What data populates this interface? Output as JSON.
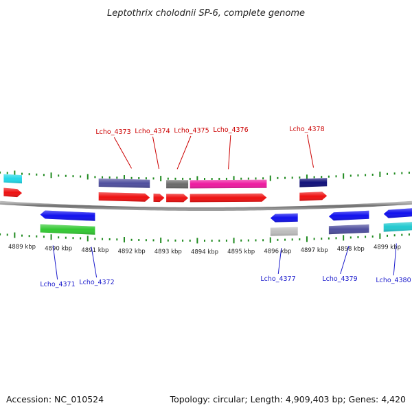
{
  "title": "Leptothrix cholodnii SP-6, complete genome",
  "footer": {
    "accession": "Accession: NC_010524",
    "summary": "Topology: circular; Length: 4,909,403 bp; Genes: 4,420"
  },
  "colors": {
    "backbone": "#8a8a8a",
    "tick": "#1f8a1f",
    "label_top": "#cc0000",
    "label_bottom": "#1a1acc"
  },
  "axis": {
    "unit": "kbp",
    "ticks": [
      {
        "kbp": 4889,
        "label": "4889 kbp"
      },
      {
        "kbp": 4890,
        "label": "4890 kbp"
      },
      {
        "kbp": 4891,
        "label": "4891 kbp"
      },
      {
        "kbp": 4892,
        "label": "4892 kbp"
      },
      {
        "kbp": 4893,
        "label": "4893 kbp"
      },
      {
        "kbp": 4894,
        "label": "4894 kbp"
      },
      {
        "kbp": 4895,
        "label": "4895 kbp"
      },
      {
        "kbp": 4896,
        "label": "4896 kbp"
      },
      {
        "kbp": 4897,
        "label": "4897 kbp"
      },
      {
        "kbp": 4898,
        "label": "4898 kbp"
      },
      {
        "kbp": 4899,
        "label": "4899 kbp"
      }
    ]
  },
  "features": [
    {
      "strand": "+",
      "track": "outer",
      "start": 4888.5,
      "end": 4889.0,
      "color": "#22d8e8",
      "arrow": false
    },
    {
      "strand": "+",
      "track": "inner",
      "start": 4888.5,
      "end": 4889.0,
      "color": "#ee1111",
      "arrow": true
    },
    {
      "strand": "-",
      "track": "inner",
      "start": 4889.5,
      "end": 4891.0,
      "color": "#1111ee",
      "arrow": true
    },
    {
      "strand": "-",
      "track": "outer",
      "start": 4889.5,
      "end": 4891.0,
      "color": "#33c933",
      "arrow": false
    },
    {
      "strand": "+",
      "track": "outer",
      "start": 4891.1,
      "end": 4892.5,
      "color": "#4f4f9e",
      "arrow": false
    },
    {
      "strand": "+",
      "track": "inner",
      "start": 4891.1,
      "end": 4892.5,
      "color": "#ee1111",
      "arrow": true
    },
    {
      "strand": "+",
      "track": "inner",
      "start": 4892.6,
      "end": 4892.9,
      "color": "#ee1111",
      "arrow": true
    },
    {
      "strand": "+",
      "track": "outer",
      "start": 4892.95,
      "end": 4893.55,
      "color": "#6a6a6a",
      "arrow": false
    },
    {
      "strand": "+",
      "track": "inner",
      "start": 4892.95,
      "end": 4893.55,
      "color": "#ee1111",
      "arrow": true
    },
    {
      "strand": "+",
      "track": "outer",
      "start": 4893.6,
      "end": 4895.7,
      "color": "#ee1aa0",
      "arrow": false
    },
    {
      "strand": "+",
      "track": "inner",
      "start": 4893.6,
      "end": 4895.7,
      "color": "#ee1111",
      "arrow": true
    },
    {
      "strand": "-",
      "track": "inner",
      "start": 4895.8,
      "end": 4896.55,
      "color": "#1111ee",
      "arrow": true
    },
    {
      "strand": "-",
      "track": "outer",
      "start": 4895.8,
      "end": 4896.55,
      "color": "#bdbdbd",
      "arrow": false
    },
    {
      "strand": "+",
      "track": "outer",
      "start": 4896.6,
      "end": 4897.35,
      "color": "#10107a",
      "arrow": false
    },
    {
      "strand": "+",
      "track": "inner",
      "start": 4896.6,
      "end": 4897.35,
      "color": "#ee1111",
      "arrow": true
    },
    {
      "strand": "-",
      "track": "inner",
      "start": 4897.4,
      "end": 4898.5,
      "color": "#1111ee",
      "arrow": true
    },
    {
      "strand": "-",
      "track": "outer",
      "start": 4897.4,
      "end": 4898.5,
      "color": "#4f4f9e",
      "arrow": false
    },
    {
      "strand": "-",
      "track": "inner",
      "start": 4898.9,
      "end": 4899.75,
      "color": "#1111ee",
      "arrow": true
    },
    {
      "strand": "-",
      "track": "outer",
      "start": 4898.9,
      "end": 4899.75,
      "color": "#22c9d0",
      "arrow": false
    }
  ],
  "labels_top": [
    {
      "text": "Lcho_4373",
      "at": 4892.0
    },
    {
      "text": "Lcho_4374",
      "at": 4892.75
    },
    {
      "text": "Lcho_4375",
      "at": 4893.25
    },
    {
      "text": "Lcho_4376",
      "at": 4894.65
    },
    {
      "text": "Lcho_4378",
      "at": 4896.98
    }
  ],
  "labels_bottom": [
    {
      "text": "Lcho_4371",
      "at": 4889.85
    },
    {
      "text": "Lcho_4372",
      "at": 4890.9
    },
    {
      "text": "Lcho_4377",
      "at": 4896.1
    },
    {
      "text": "Lcho_4379",
      "at": 4897.95
    },
    {
      "text": "Lcho_4380",
      "at": 4899.25
    }
  ]
}
